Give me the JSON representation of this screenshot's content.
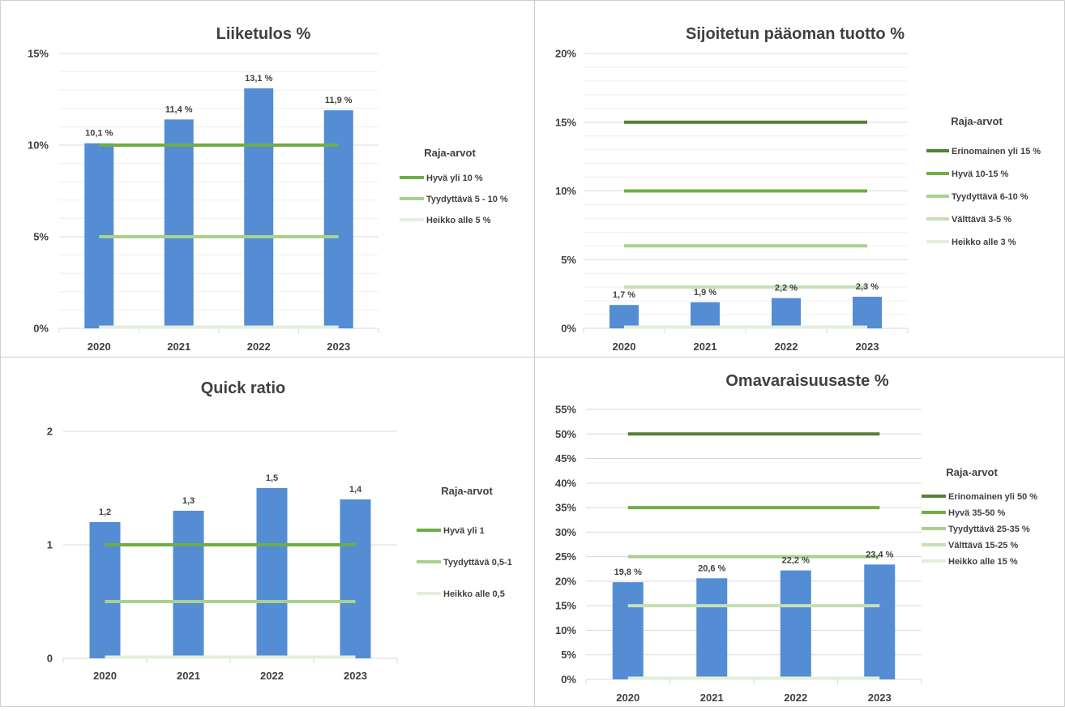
{
  "colors": {
    "bar": "#548dd4",
    "grid_major": "#d9d9d9",
    "grid_minor": "#efefef",
    "border": "#cfcfcf",
    "text": "#404040"
  },
  "legend_title": "Raja-arvot",
  "chart_data": [
    {
      "type": "bar",
      "title": "Liiketulos %",
      "categories": [
        "2020",
        "2021",
        "2022",
        "2023"
      ],
      "values": [
        10.1,
        11.4,
        13.1,
        11.9
      ],
      "data_labels": [
        "10,1 %",
        "11,4 %",
        "13,1 %",
        "11,9 %"
      ],
      "ylim": [
        0,
        15
      ],
      "yticks": [
        0,
        5,
        10,
        15
      ],
      "ytick_labels": [
        "0%",
        "5%",
        "10%",
        "15%"
      ],
      "minor_step": 1,
      "thresholds": [
        {
          "name": "Hyvä yli 10 %",
          "value": 10,
          "color": "#70ad47"
        },
        {
          "name": "Tyydyttävä 5 - 10 %",
          "value": 5,
          "color": "#a9d18e"
        },
        {
          "name": "Heikko alle 5 %",
          "value": 0,
          "color": "#e2efda"
        }
      ]
    },
    {
      "type": "bar",
      "title": "Sijoitetun pääoman tuotto %",
      "categories": [
        "2020",
        "2021",
        "2022",
        "2023"
      ],
      "values": [
        1.7,
        1.9,
        2.2,
        2.3
      ],
      "data_labels": [
        "1,7 %",
        "1,9 %",
        "2,2 %",
        "2,3 %"
      ],
      "ylim": [
        0,
        20
      ],
      "yticks": [
        0,
        5,
        10,
        15,
        20
      ],
      "ytick_labels": [
        "0%",
        "5%",
        "10%",
        "15%",
        "20%"
      ],
      "minor_step": 1,
      "thresholds": [
        {
          "name": "Erinomainen yli 15 %",
          "value": 15,
          "color": "#538135"
        },
        {
          "name": "Hyvä 10-15 %",
          "value": 10,
          "color": "#70ad47"
        },
        {
          "name": "Tyydyttävä 6-10 %",
          "value": 6,
          "color": "#a9d18e"
        },
        {
          "name": "Välttävä 3-5 %",
          "value": 3,
          "color": "#c5e0b3"
        },
        {
          "name": "Heikko alle 3 %",
          "value": 0,
          "color": "#e2efda"
        }
      ]
    },
    {
      "type": "bar",
      "title": "Quick ratio",
      "categories": [
        "2020",
        "2021",
        "2022",
        "2023"
      ],
      "values": [
        1.2,
        1.3,
        1.5,
        1.4
      ],
      "data_labels": [
        "1,2",
        "1,3",
        "1,5",
        "1,4"
      ],
      "ylim": [
        0,
        2
      ],
      "yticks": [
        0,
        1,
        2
      ],
      "ytick_labels": [
        "0",
        "1",
        "2"
      ],
      "minor_step": null,
      "thresholds": [
        {
          "name": "Hyvä yli 1",
          "value": 1,
          "color": "#70ad47"
        },
        {
          "name": "Tyydyttävä 0,5-1",
          "value": 0.5,
          "color": "#a9d18e"
        },
        {
          "name": "Heikko alle 0,5",
          "value": 0,
          "color": "#e2efda"
        }
      ]
    },
    {
      "type": "bar",
      "title": "Omavaraisuusaste %",
      "categories": [
        "2020",
        "2021",
        "2022",
        "2023"
      ],
      "values": [
        19.8,
        20.6,
        22.2,
        23.4
      ],
      "data_labels": [
        "19,8 %",
        "20,6 %",
        "22,2 %",
        "23,4 %"
      ],
      "ylim": [
        0,
        55
      ],
      "yticks": [
        0,
        5,
        10,
        15,
        20,
        25,
        30,
        35,
        40,
        45,
        50,
        55
      ],
      "ytick_labels": [
        "0%",
        "5%",
        "10%",
        "15%",
        "20%",
        "25%",
        "30%",
        "35%",
        "40%",
        "45%",
        "50%",
        "55%"
      ],
      "minor_step": null,
      "thresholds": [
        {
          "name": "Erinomainen yli 50 %",
          "value": 50,
          "color": "#538135"
        },
        {
          "name": "Hyvä 35-50 %",
          "value": 35,
          "color": "#70ad47"
        },
        {
          "name": "Tyydyttävä 25-35 %",
          "value": 25,
          "color": "#a9d18e"
        },
        {
          "name": "Välttävä 15-25 %",
          "value": 15,
          "color": "#c5e0b3"
        },
        {
          "name": "Heikko alle 15 %",
          "value": 0,
          "color": "#e2efda"
        }
      ]
    }
  ]
}
